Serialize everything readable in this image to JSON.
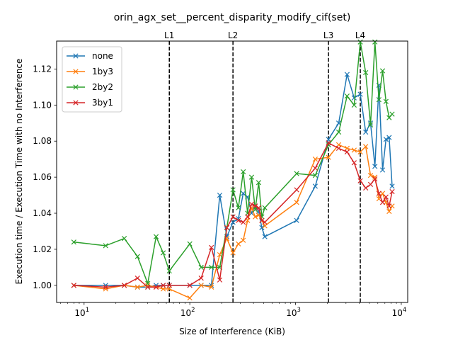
{
  "chart_data": {
    "type": "line",
    "title": "orin_agx_set__percent_disparity_modify_cif(set)",
    "xlabel": "Size of Interference (KiB)",
    "ylabel": "Execution time / Execution Time with no Interference",
    "xscale": "log",
    "xlim": [
      5.5,
      11500
    ],
    "ylim": [
      0.9905,
      1.1355
    ],
    "yticks": [
      1.0,
      1.02,
      1.04,
      1.06,
      1.08,
      1.1,
      1.12
    ],
    "ytick_labels": [
      "1.00",
      "1.02",
      "1.04",
      "1.06",
      "1.08",
      "1.10",
      "1.12"
    ],
    "xticks": [
      10,
      100,
      1000,
      10000
    ],
    "xtick_base": "10",
    "xtick_exponents": [
      "1",
      "2",
      "3",
      "4"
    ],
    "legend_position": "upper-left",
    "grid": false,
    "marker": "x",
    "vlines": [
      {
        "label": "L1",
        "x": 64
      },
      {
        "label": "L2",
        "x": 256
      },
      {
        "label": "L3",
        "x": 2048
      },
      {
        "label": "L4",
        "x": 4096
      }
    ],
    "series": [
      {
        "name": "none",
        "color": "#1f77b4",
        "x": [
          8,
          16,
          24,
          32,
          40,
          48,
          56,
          64,
          100,
          128,
          160,
          192,
          224,
          256,
          288,
          320,
          352,
          384,
          416,
          448,
          480,
          512,
          1024,
          1536,
          2048,
          2560,
          3072,
          3584,
          4096,
          4608,
          5120,
          5632,
          6144,
          6656,
          7168,
          7680,
          8192
        ],
        "y": [
          1.0,
          1.0,
          1.0,
          0.999,
          0.999,
          1.0,
          1.0,
          1.0,
          1.0,
          1.0,
          1.0,
          1.05,
          1.027,
          1.035,
          1.037,
          1.051,
          1.049,
          1.04,
          1.044,
          1.041,
          1.032,
          1.027,
          1.036,
          1.055,
          1.081,
          1.09,
          1.117,
          1.104,
          1.106,
          1.085,
          1.09,
          1.066,
          1.111,
          1.064,
          1.081,
          1.082,
          1.055
        ]
      },
      {
        "name": "1by3",
        "color": "#ff7f0e",
        "x": [
          8,
          16,
          24,
          32,
          40,
          48,
          56,
          64,
          100,
          128,
          160,
          192,
          224,
          256,
          288,
          320,
          352,
          384,
          416,
          448,
          480,
          512,
          1024,
          1536,
          2048,
          2560,
          3072,
          3584,
          4096,
          4608,
          5120,
          5632,
          6144,
          6656,
          7168,
          7680,
          8192
        ],
        "y": [
          1.0,
          0.998,
          1.0,
          0.999,
          1.0,
          0.999,
          0.998,
          0.998,
          0.993,
          1.0,
          0.999,
          1.017,
          1.026,
          1.018,
          1.023,
          1.025,
          1.036,
          1.043,
          1.038,
          1.039,
          1.036,
          1.033,
          1.046,
          1.07,
          1.071,
          1.078,
          1.076,
          1.075,
          1.074,
          1.077,
          1.061,
          1.06,
          1.048,
          1.051,
          1.046,
          1.041,
          1.044
        ]
      },
      {
        "name": "2by2",
        "color": "#2ca02c",
        "x": [
          8,
          16,
          24,
          32,
          40,
          48,
          56,
          64,
          100,
          128,
          160,
          192,
          224,
          256,
          288,
          320,
          352,
          384,
          416,
          448,
          480,
          512,
          1024,
          1536,
          2048,
          2560,
          3072,
          3584,
          4096,
          4608,
          5120,
          5632,
          6144,
          6656,
          7168,
          7680,
          8192
        ],
        "y": [
          1.024,
          1.022,
          1.026,
          1.016,
          1.001,
          1.027,
          1.018,
          1.008,
          1.023,
          1.01,
          1.01,
          1.01,
          1.032,
          1.053,
          1.043,
          1.063,
          1.04,
          1.06,
          1.042,
          1.057,
          1.038,
          1.043,
          1.062,
          1.061,
          1.078,
          1.085,
          1.105,
          1.1,
          1.135,
          1.118,
          1.089,
          1.135,
          1.103,
          1.119,
          1.102,
          1.093,
          1.095
        ]
      },
      {
        "name": "3by1",
        "color": "#d62728",
        "x": [
          8,
          16,
          24,
          32,
          40,
          48,
          56,
          64,
          100,
          128,
          160,
          192,
          224,
          256,
          288,
          320,
          352,
          384,
          416,
          448,
          480,
          512,
          1024,
          1536,
          2048,
          2560,
          3072,
          3584,
          4096,
          4608,
          5120,
          5632,
          6144,
          6656,
          7168,
          7680,
          8192
        ],
        "y": [
          1.0,
          0.999,
          1.0,
          1.004,
          0.999,
          0.999,
          1.0,
          1.0,
          1.0,
          1.004,
          1.021,
          1.003,
          1.032,
          1.038,
          1.036,
          1.035,
          1.038,
          1.045,
          1.044,
          1.043,
          1.036,
          1.035,
          1.053,
          1.065,
          1.079,
          1.076,
          1.074,
          1.068,
          1.058,
          1.054,
          1.056,
          1.059,
          1.051,
          1.046,
          1.049,
          1.044,
          1.052
        ]
      }
    ]
  }
}
